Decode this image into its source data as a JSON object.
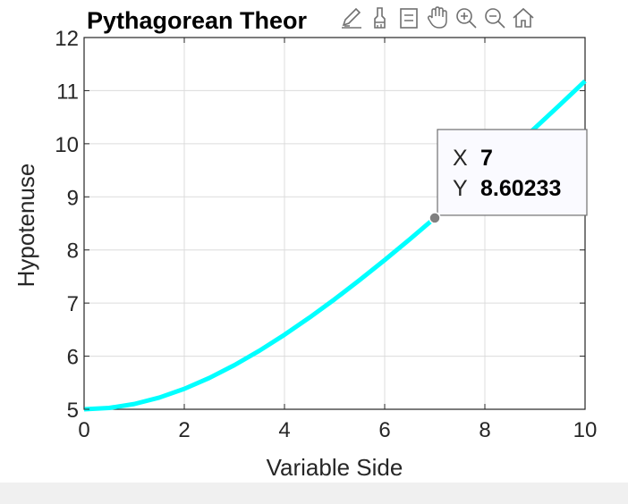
{
  "chart_data": {
    "type": "line",
    "title": "Pythagorean Theor",
    "xlabel": "Variable Side",
    "ylabel": "Hypotenuse",
    "xlim": [
      0,
      10
    ],
    "ylim": [
      5,
      12
    ],
    "xticks": [
      "0",
      "2",
      "4",
      "6",
      "8",
      "10"
    ],
    "yticks": [
      "5",
      "6",
      "7",
      "8",
      "9",
      "10",
      "11",
      "12"
    ],
    "grid": true,
    "series": [
      {
        "color": "#00ffff",
        "x": [
          0,
          0.5,
          1,
          1.5,
          2,
          2.5,
          3,
          3.5,
          4,
          4.5,
          5,
          5.5,
          6,
          6.5,
          7,
          7.5,
          8,
          8.5,
          9,
          9.5,
          10
        ],
        "y": [
          5,
          5.025,
          5.099,
          5.22,
          5.385,
          5.59,
          5.831,
          6.103,
          6.403,
          6.727,
          7.071,
          7.433,
          7.81,
          8.201,
          8.602,
          9.014,
          9.434,
          9.862,
          10.296,
          10.735,
          11.18
        ]
      }
    ],
    "datatip": {
      "x_key": "X",
      "y_key": "Y",
      "x_value": "7",
      "y_value": "8.60233",
      "x": 7,
      "y": 8.60233
    }
  },
  "toolbar": {
    "icons": [
      "edit-plot-icon",
      "brush-icon",
      "legend-icon",
      "pan-hand-icon",
      "zoom-in-icon",
      "zoom-out-icon",
      "home-icon"
    ]
  },
  "colors": {
    "line": "#00ffff",
    "grid": "#dcdcdc",
    "axes": "#262626",
    "marker": "#808080",
    "bottom_bar": "#f0f0f0"
  }
}
